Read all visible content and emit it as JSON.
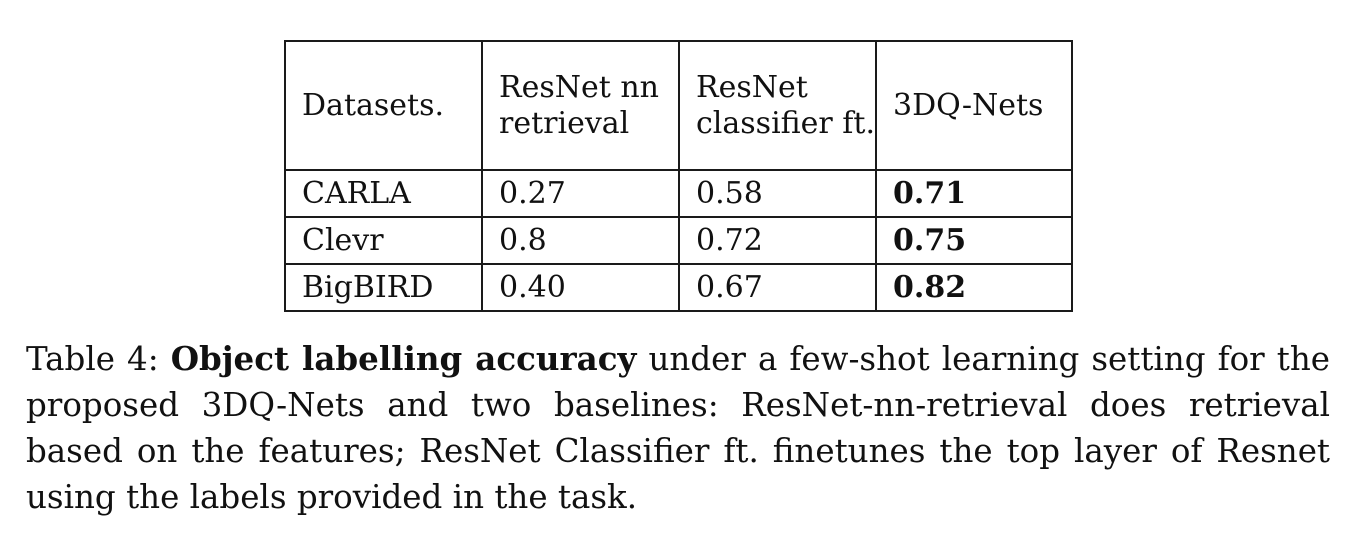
{
  "table": {
    "headers": [
      "Datasets.",
      "ResNet nn retrieval",
      "ResNet classifier ft.",
      "3DQ-Nets"
    ],
    "rows": [
      {
        "dataset": "CARLA",
        "resnet_nn": "0.27",
        "resnet_clf": "0.58",
        "qnets": "0.71"
      },
      {
        "dataset": "Clevr",
        "resnet_nn": "0.8",
        "resnet_clf": "0.72",
        "qnets": "0.75"
      },
      {
        "dataset": "BigBIRD",
        "resnet_nn": "0.40",
        "resnet_clf": "0.67",
        "qnets": "0.82"
      }
    ]
  },
  "caption": {
    "label": "Table 4:",
    "title": "Object labelling accuracy",
    "body": "under a few-shot learning setting for the proposed 3DQ-Nets and two baselines: ResNet-nn-retrieval does retrieval based on the features; ResNet Classifier ft. finetunes the top layer of Resnet using the labels provided in the task."
  }
}
